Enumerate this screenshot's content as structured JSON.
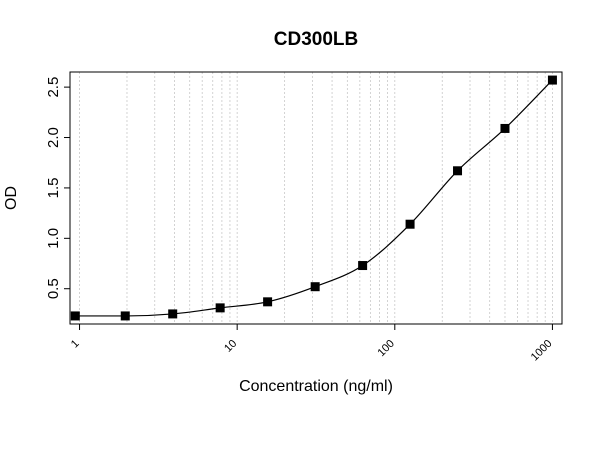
{
  "chart_data": {
    "type": "scatter",
    "title": "CD300LB",
    "xlabel": "Concentration (ng/ml)",
    "ylabel": "OD",
    "x_scale": "log",
    "xlim": [
      0.87,
      1150
    ],
    "ylim": [
      0.15,
      2.65
    ],
    "x_ticks": [
      1,
      10,
      100,
      1000
    ],
    "x_tick_labels": [
      "1",
      "10",
      "100",
      "1000"
    ],
    "y_ticks": [
      0.5,
      1.0,
      1.5,
      2.0,
      2.5
    ],
    "y_tick_labels": [
      "0.5",
      "1.0",
      "1.5",
      "2.0",
      "2.5"
    ],
    "grid": "vertical dotted at log minor ticks",
    "points": {
      "x": [
        0.94,
        1.95,
        3.9,
        7.8,
        15.6,
        31.25,
        62.5,
        125,
        250,
        500,
        1000
      ],
      "y": [
        0.23,
        0.23,
        0.25,
        0.31,
        0.37,
        0.52,
        0.73,
        1.14,
        1.67,
        2.09,
        2.57
      ]
    },
    "fit_curve": "4-parameter logistic",
    "colors": {
      "marker": "#000000",
      "curve": "#000000",
      "grid": "#c8c8c8"
    }
  }
}
